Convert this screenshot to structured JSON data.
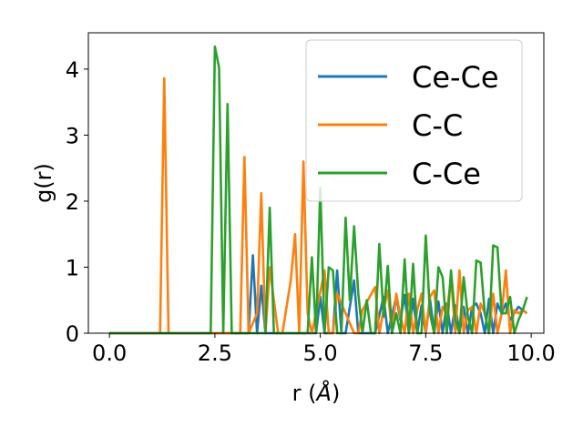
{
  "chart_data": {
    "type": "line",
    "title": "",
    "xlabel": "r (",
    "xlabel_symbol": "Å",
    "xlabel_close": ")",
    "ylabel": "g(r)",
    "xlim": [
      -0.5,
      10.3
    ],
    "ylim": [
      0,
      4.55
    ],
    "xticks": [
      0.0,
      2.5,
      5.0,
      7.5,
      10.0
    ],
    "xtick_labels": [
      "0.0",
      "2.5",
      "5.0",
      "7.5",
      "10.0"
    ],
    "yticks": [
      0,
      1,
      2,
      3,
      4
    ],
    "ytick_labels": [
      "0",
      "1",
      "2",
      "3",
      "4"
    ],
    "grid": false,
    "legend_position": "top-right",
    "series": [
      {
        "name": "Ce-Ce",
        "color": "#1f77b4",
        "x": [
          0.0,
          3.2,
          3.3,
          3.4,
          3.5,
          3.6,
          3.7,
          3.8,
          4.9,
          5.0,
          5.1,
          5.3,
          5.4,
          5.5,
          5.6,
          5.8,
          5.9,
          6.0,
          6.3,
          6.5,
          6.6,
          6.8,
          6.9,
          7.0,
          7.1,
          7.2,
          7.3,
          7.4,
          7.5,
          7.6,
          7.7,
          7.8,
          7.9,
          8.0,
          8.1,
          8.2,
          8.3,
          8.4,
          8.5,
          8.6,
          8.7,
          8.8,
          8.9,
          9.0,
          9.1,
          9.2,
          9.3,
          9.4,
          9.5,
          9.6,
          9.7,
          9.8,
          9.9
        ],
        "y": [
          0,
          0,
          0,
          1.18,
          0,
          0.72,
          0,
          0,
          0,
          0.55,
          0,
          0,
          0.95,
          0,
          0,
          0.8,
          0,
          0,
          0,
          0.55,
          0,
          0.55,
          0.2,
          0.58,
          0,
          0.52,
          0,
          0.42,
          0,
          0.52,
          0,
          0.48,
          0,
          0.45,
          0,
          0.42,
          0,
          0.4,
          0,
          0.4,
          0.45,
          0.3,
          0,
          0.52,
          0,
          0.45,
          0.3,
          0.45,
          0.2,
          0.3,
          0.4,
          0.35,
          0.3
        ]
      },
      {
        "name": "C-C",
        "color": "#ff7f0e",
        "x": [
          0.0,
          1.2,
          1.3,
          1.4,
          3.1,
          3.2,
          3.3,
          3.5,
          3.6,
          3.7,
          3.8,
          4.0,
          4.1,
          4.3,
          4.4,
          4.5,
          4.6,
          4.7,
          4.8,
          5.1,
          5.2,
          5.3,
          5.4,
          5.8,
          5.9,
          6.0,
          6.3,
          6.4,
          6.5,
          6.6,
          6.7,
          6.8,
          6.9,
          7.0,
          7.1,
          7.2,
          7.3,
          7.4,
          7.5,
          7.6,
          7.7,
          7.8,
          7.9,
          8.0,
          8.1,
          8.2,
          8.3,
          8.4,
          8.5,
          8.6,
          8.7,
          8.8,
          8.9,
          9.0,
          9.1,
          9.2,
          9.3,
          9.4,
          9.5,
          9.6,
          9.7,
          9.8,
          9.9
        ],
        "y": [
          0,
          0,
          3.86,
          0,
          0,
          2.67,
          0,
          0.3,
          2.12,
          0,
          1.0,
          0,
          0,
          0.8,
          1.5,
          0,
          2.6,
          0.3,
          0,
          0.95,
          0,
          0,
          0.6,
          0,
          0,
          0.35,
          0.7,
          0,
          0.35,
          0.65,
          0,
          0.6,
          0.25,
          0,
          0.6,
          0,
          0.35,
          0.6,
          0,
          0.55,
          0.65,
          0,
          0.4,
          0.3,
          0.85,
          0,
          0.95,
          0,
          0.35,
          0.4,
          0,
          0.45,
          0.3,
          0,
          0.6,
          0,
          0.3,
          0.95,
          0,
          0.35,
          0.3,
          0.35,
          0.3
        ]
      },
      {
        "name": "C-Ce",
        "color": "#2ca02c",
        "x": [
          0.0,
          2.4,
          2.5,
          2.6,
          2.7,
          2.8,
          2.9,
          3.7,
          3.8,
          3.9,
          4.7,
          4.8,
          4.9,
          5.0,
          5.1,
          5.2,
          5.3,
          5.4,
          5.5,
          5.6,
          5.7,
          5.8,
          5.9,
          6.0,
          6.1,
          6.2,
          6.3,
          6.4,
          6.5,
          6.6,
          6.7,
          6.8,
          6.9,
          7.0,
          7.1,
          7.2,
          7.3,
          7.4,
          7.5,
          7.6,
          7.7,
          7.8,
          7.9,
          8.0,
          8.1,
          8.2,
          8.3,
          8.4,
          8.5,
          8.6,
          8.7,
          8.8,
          8.9,
          9.0,
          9.1,
          9.2,
          9.3,
          9.4,
          9.5,
          9.6,
          9.7,
          9.8,
          9.9
        ],
        "y": [
          0,
          0,
          4.34,
          4.02,
          0,
          3.47,
          0,
          0,
          1.9,
          0,
          0,
          1.15,
          0,
          2.2,
          0,
          1.0,
          0.95,
          0,
          0,
          1.75,
          0.5,
          1.62,
          0.6,
          0,
          0.5,
          0,
          0,
          1.35,
          0.25,
          1.02,
          0,
          0.3,
          0,
          1.12,
          0,
          1.05,
          0,
          0,
          1.48,
          0.3,
          0,
          1.0,
          0.85,
          0,
          0.95,
          0.2,
          0,
          0.85,
          0.25,
          0,
          1.1,
          1.07,
          0.3,
          0,
          1.33,
          1.3,
          0.3,
          0.3,
          0.55,
          0,
          0.2,
          0.35,
          0.55
        ]
      }
    ]
  }
}
